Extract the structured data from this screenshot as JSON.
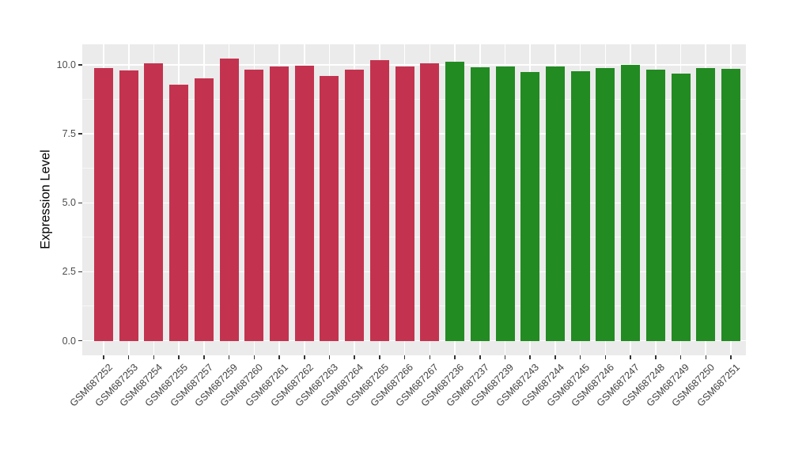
{
  "chart_data": {
    "type": "bar",
    "title": "",
    "xlabel": "",
    "ylabel": "Expression Level",
    "ylim": [
      -0.53,
      10.75
    ],
    "ytick_values": [
      0.0,
      2.5,
      5.0,
      7.5,
      10.0
    ],
    "ytick_labels": [
      "0.0",
      "2.5",
      "5.0",
      "7.5",
      "10.0"
    ],
    "minor_ytick_values": [
      1.25,
      3.75,
      6.25,
      8.75
    ],
    "grid": "white major and minor horizontal lines plus white vertical lines at each bar center on grey panel",
    "legend_position": "none",
    "bar_groups": [
      {
        "name": "crimson-group",
        "color": "#C3334F",
        "categories": [
          "GSM687252",
          "GSM687253",
          "GSM687254",
          "GSM687255",
          "GSM687257",
          "GSM687259",
          "GSM687260",
          "GSM687261",
          "GSM687262",
          "GSM687263",
          "GSM687264",
          "GSM687265",
          "GSM687266",
          "GSM687267"
        ],
        "values": [
          9.88,
          9.8,
          10.05,
          9.28,
          9.52,
          10.22,
          9.82,
          9.95,
          9.98,
          9.6,
          9.82,
          10.18,
          9.95,
          10.07
        ]
      },
      {
        "name": "green-group",
        "color": "#228B22",
        "categories": [
          "GSM687236",
          "GSM687237",
          "GSM687239",
          "GSM687243",
          "GSM687244",
          "GSM687245",
          "GSM687246",
          "GSM687247",
          "GSM687248",
          "GSM687249",
          "GSM687250",
          "GSM687251"
        ],
        "values": [
          10.12,
          9.93,
          9.95,
          9.75,
          9.95,
          9.78,
          9.9,
          10.0,
          9.83,
          9.68,
          9.88,
          9.85
        ]
      }
    ]
  },
  "style": {
    "panel_background": "#EBEBEB",
    "figure_background": "#FFFFFF",
    "grid_major_color": "#FFFFFF",
    "grid_minor_color": "#F5F5F5",
    "axis_text_color": "#4D4D4D",
    "axis_title_color": "#000000",
    "tick_mark_color": "#333333"
  }
}
